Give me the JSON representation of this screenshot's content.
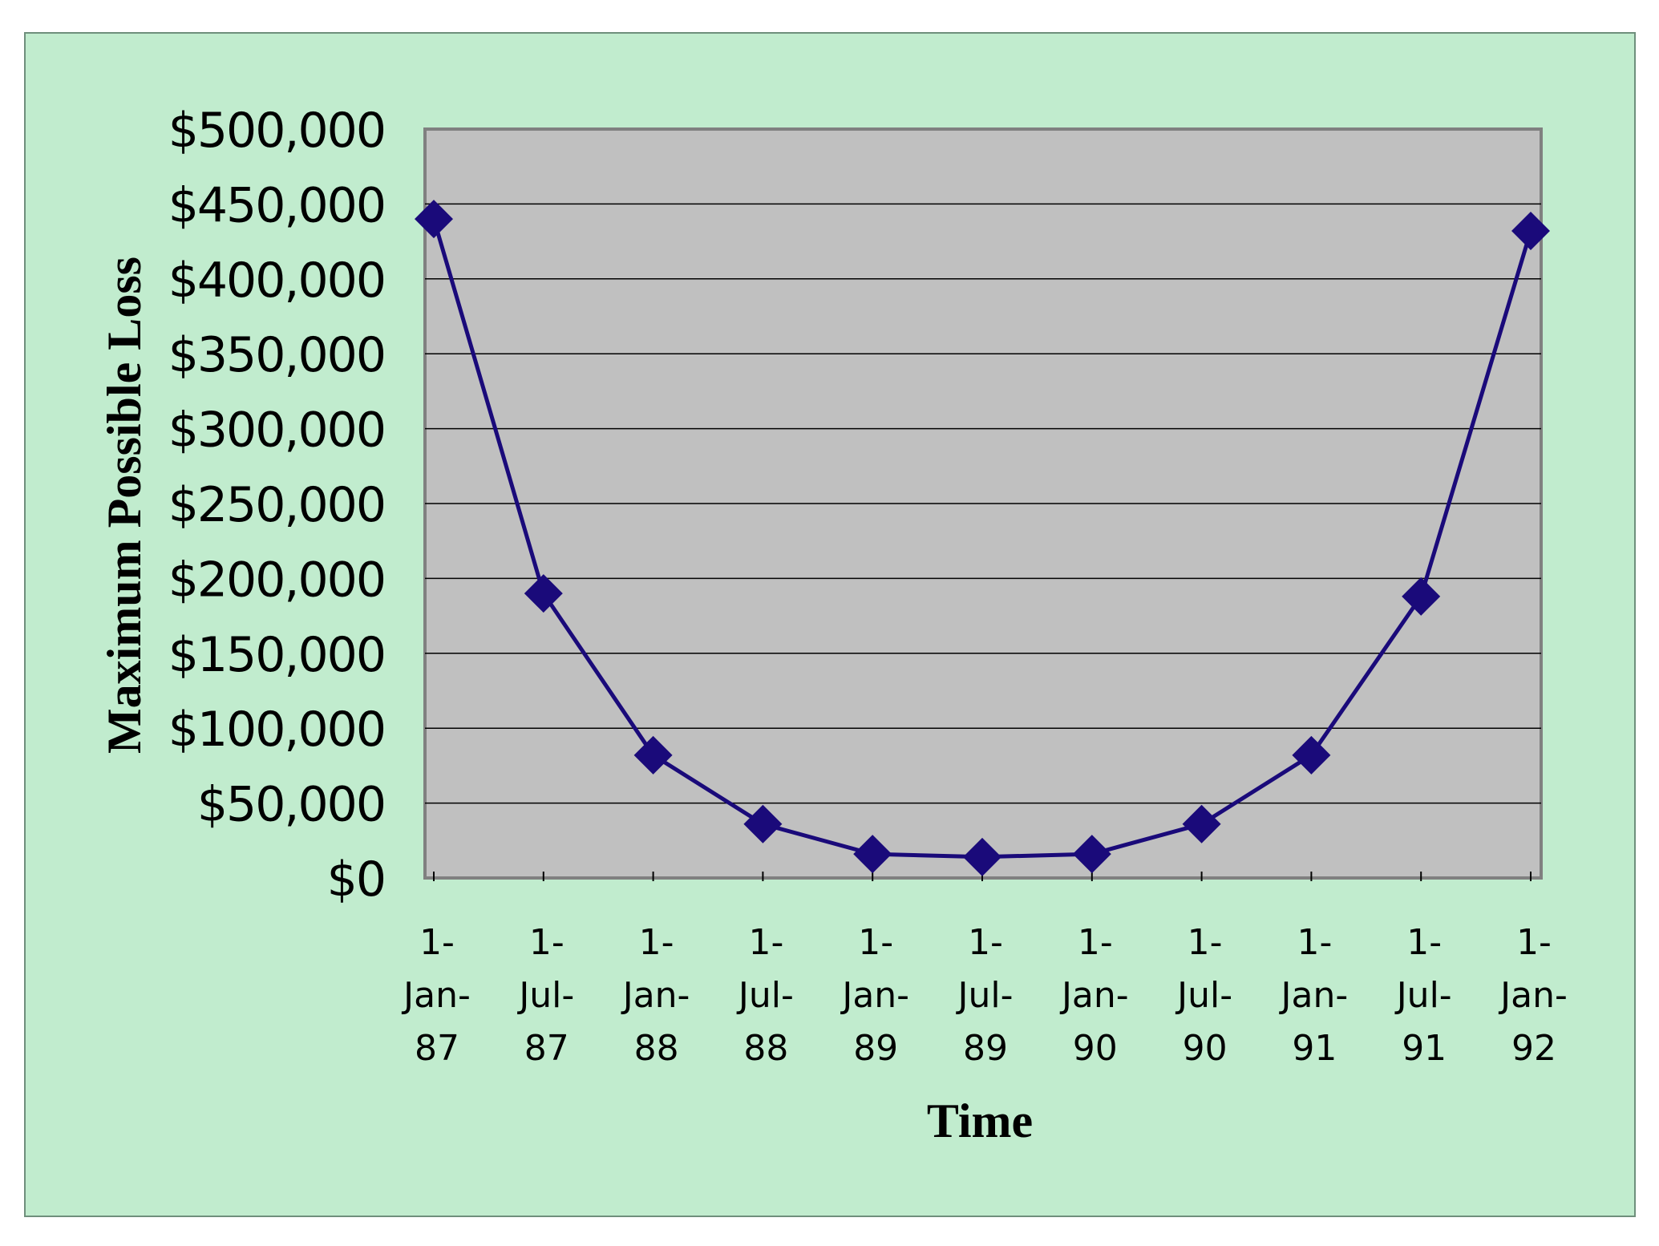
{
  "chart_data": {
    "type": "line",
    "xlabel": "Time",
    "ylabel": "Maximum Possible Loss",
    "ylim": [
      0,
      500000
    ],
    "y_ticks": [
      "$0",
      "$50,000",
      "$100,000",
      "$150,000",
      "$200,000",
      "$250,000",
      "$300,000",
      "$350,000",
      "$400,000",
      "$450,000",
      "$500,000"
    ],
    "categories": [
      [
        "1-",
        "Jan-",
        "87"
      ],
      [
        "1-",
        "Jul-",
        "87"
      ],
      [
        "1-",
        "Jan-",
        "88"
      ],
      [
        "1-",
        "Jul-",
        "88"
      ],
      [
        "1-",
        "Jan-",
        "89"
      ],
      [
        "1-",
        "Jul-",
        "89"
      ],
      [
        "1-",
        "Jan-",
        "90"
      ],
      [
        "1-",
        "Jul-",
        "90"
      ],
      [
        "1-",
        "Jan-",
        "91"
      ],
      [
        "1-",
        "Jul-",
        "91"
      ],
      [
        "1-",
        "Jan-",
        "92"
      ]
    ],
    "x_dates": [
      "1987-01-01",
      "1987-07-01",
      "1988-01-01",
      "1988-07-01",
      "1989-01-01",
      "1989-07-01",
      "1990-01-01",
      "1990-07-01",
      "1991-01-01",
      "1991-07-01",
      "1992-01-01"
    ],
    "values": [
      440000,
      190000,
      82000,
      36000,
      16000,
      14000,
      16000,
      36000,
      82000,
      188000,
      432000
    ],
    "grid": true,
    "colors": {
      "background": "#c1ecce",
      "plot_area": "#c0c0c0",
      "series": "#1a0a7a",
      "grid": "#000000"
    }
  }
}
